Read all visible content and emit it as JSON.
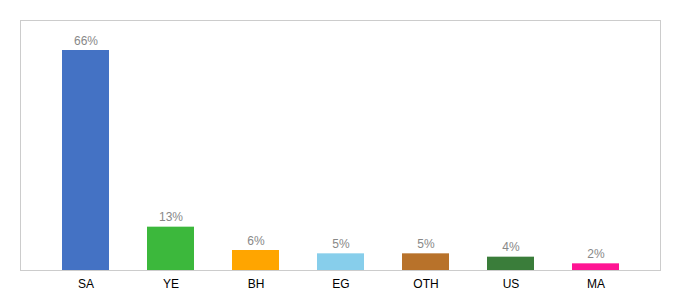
{
  "chart_data": {
    "type": "bar",
    "categories": [
      "SA",
      "YE",
      "BH",
      "EG",
      "OTH",
      "US",
      "MA"
    ],
    "values": [
      66,
      13,
      6,
      5,
      5,
      4,
      2
    ],
    "value_labels": [
      "66%",
      "13%",
      "6%",
      "5%",
      "5%",
      "4%",
      "2%"
    ],
    "colors": [
      "#4472C4",
      "#3CB83C",
      "#FFA500",
      "#87CEEB",
      "#B8722A",
      "#3A7D3A",
      "#FF1493"
    ],
    "ylim": [
      0,
      75
    ],
    "data_labels": true,
    "tick_labels": "x",
    "grid": false
  }
}
